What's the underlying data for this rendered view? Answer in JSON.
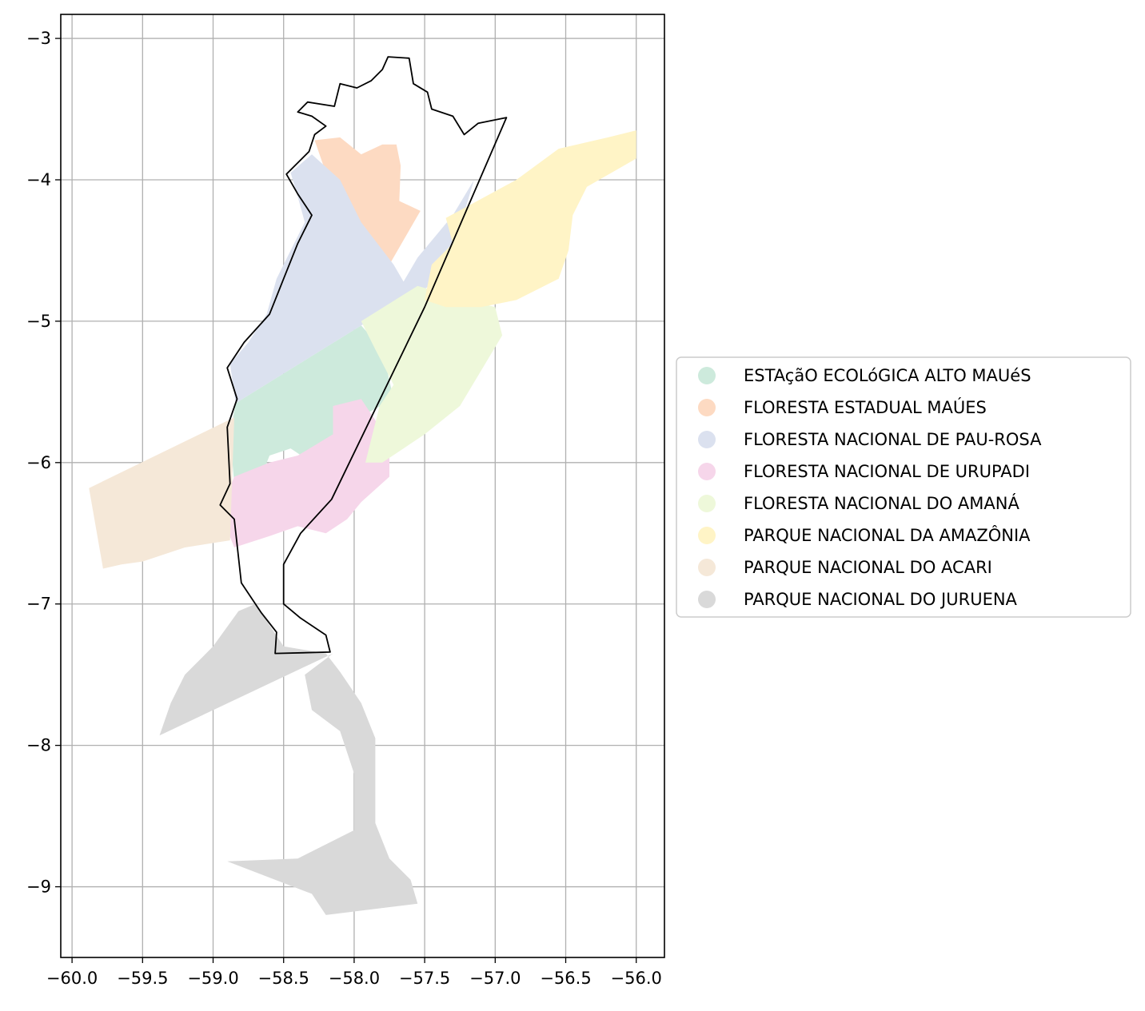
{
  "chart_data": {
    "type": "map",
    "title": "",
    "xlabel": "",
    "ylabel": "",
    "xlim": [
      -60.08,
      -55.8
    ],
    "ylim": [
      -9.5,
      -2.83
    ],
    "grid": true,
    "x_ticks": [
      {
        "value": -60.0,
        "label": "−60.0"
      },
      {
        "value": -59.5,
        "label": "−59.5"
      },
      {
        "value": -59.0,
        "label": "−59.0"
      },
      {
        "value": -58.5,
        "label": "−58.5"
      },
      {
        "value": -58.0,
        "label": "−58.0"
      },
      {
        "value": -57.5,
        "label": "−57.5"
      },
      {
        "value": -57.0,
        "label": "−57.0"
      },
      {
        "value": -56.5,
        "label": "−56.5"
      },
      {
        "value": -56.0,
        "label": "−56.0"
      }
    ],
    "y_ticks": [
      {
        "value": -3,
        "label": "−3"
      },
      {
        "value": -4,
        "label": "−4"
      },
      {
        "value": -5,
        "label": "−5"
      },
      {
        "value": -6,
        "label": "−6"
      },
      {
        "value": -7,
        "label": "−7"
      },
      {
        "value": -8,
        "label": "−8"
      },
      {
        "value": -9,
        "label": "−9"
      }
    ],
    "legend_position": "right",
    "areas": [
      {
        "name": "ESTAçãO ECOLóGICA ALTO MAUéS",
        "color": "#cdeadc",
        "coords": [
          [
            -58.84,
            -5.58
          ],
          [
            -57.95,
            -5.03
          ],
          [
            -57.8,
            -5.2
          ],
          [
            -57.72,
            -5.55
          ],
          [
            -58.0,
            -5.7
          ],
          [
            -58.15,
            -5.85
          ],
          [
            -58.3,
            -6.0
          ],
          [
            -58.45,
            -5.9
          ],
          [
            -58.6,
            -5.95
          ],
          [
            -58.7,
            -6.2
          ],
          [
            -58.85,
            -6.15
          ],
          [
            -58.88,
            -5.8
          ]
        ]
      },
      {
        "name": "FLORESTA ESTADUAL MAÚES",
        "color": "#fddac2",
        "coords": [
          [
            -58.28,
            -3.72
          ],
          [
            -58.1,
            -3.7
          ],
          [
            -57.95,
            -3.82
          ],
          [
            -57.8,
            -3.75
          ],
          [
            -57.7,
            -3.75
          ],
          [
            -57.67,
            -3.9
          ],
          [
            -57.68,
            -4.15
          ],
          [
            -57.53,
            -4.22
          ],
          [
            -57.75,
            -4.6
          ],
          [
            -57.95,
            -4.35
          ],
          [
            -58.1,
            -4.1
          ],
          [
            -58.2,
            -3.95
          ]
        ]
      },
      {
        "name": "FLORESTA NACIONAL DE PAU-ROSA",
        "color": "#dbe1ef",
        "coords": [
          [
            -58.45,
            -3.95
          ],
          [
            -58.3,
            -3.82
          ],
          [
            -58.1,
            -4.0
          ],
          [
            -57.95,
            -4.3
          ],
          [
            -57.72,
            -4.6
          ],
          [
            -57.65,
            -4.72
          ],
          [
            -57.55,
            -4.55
          ],
          [
            -57.3,
            -4.25
          ],
          [
            -57.15,
            -4.0
          ],
          [
            -57.3,
            -4.5
          ],
          [
            -57.48,
            -4.76
          ],
          [
            -57.95,
            -5.03
          ],
          [
            -58.84,
            -5.58
          ],
          [
            -58.88,
            -5.3
          ],
          [
            -58.75,
            -5.15
          ],
          [
            -58.62,
            -4.95
          ],
          [
            -58.55,
            -4.7
          ],
          [
            -58.45,
            -4.5
          ],
          [
            -58.35,
            -4.3
          ],
          [
            -58.4,
            -4.12
          ]
        ]
      },
      {
        "name": "FLORESTA NACIONAL DE URUPADI",
        "color": "#f6d6ea",
        "coords": [
          [
            -58.15,
            -5.6
          ],
          [
            -57.95,
            -5.55
          ],
          [
            -57.85,
            -5.7
          ],
          [
            -57.75,
            -5.9
          ],
          [
            -57.75,
            -6.1
          ],
          [
            -57.95,
            -6.28
          ],
          [
            -58.05,
            -6.4
          ],
          [
            -58.2,
            -6.5
          ],
          [
            -58.4,
            -6.45
          ],
          [
            -58.6,
            -6.52
          ],
          [
            -58.85,
            -6.6
          ],
          [
            -58.95,
            -6.35
          ],
          [
            -58.85,
            -6.1
          ],
          [
            -58.6,
            -6.0
          ],
          [
            -58.4,
            -5.95
          ],
          [
            -58.15,
            -5.8
          ]
        ]
      },
      {
        "name": "FLORESTA NACIONAL DO AMANÁ",
        "color": "#eef8da",
        "coords": [
          [
            -57.95,
            -5.0
          ],
          [
            -57.55,
            -4.75
          ],
          [
            -57.2,
            -4.85
          ],
          [
            -57.0,
            -4.9
          ],
          [
            -56.95,
            -5.1
          ],
          [
            -57.25,
            -5.6
          ],
          [
            -57.5,
            -5.8
          ],
          [
            -57.8,
            -6.0
          ],
          [
            -57.92,
            -6.0
          ],
          [
            -57.82,
            -5.6
          ],
          [
            -57.72,
            -5.45
          ],
          [
            -57.85,
            -5.2
          ]
        ]
      },
      {
        "name": "PARQUE NACIONAL DA AMAZÔNIA",
        "color": "#fff4c6",
        "coords": [
          [
            -57.35,
            -4.27
          ],
          [
            -56.85,
            -4.0
          ],
          [
            -56.55,
            -3.78
          ],
          [
            -56.2,
            -3.7
          ],
          [
            -56.0,
            -3.65
          ],
          [
            -56.0,
            -3.85
          ],
          [
            -56.35,
            -4.05
          ],
          [
            -56.45,
            -4.25
          ],
          [
            -56.48,
            -4.5
          ],
          [
            -56.55,
            -4.7
          ],
          [
            -56.85,
            -4.85
          ],
          [
            -57.1,
            -4.9
          ],
          [
            -57.35,
            -4.9
          ],
          [
            -57.5,
            -4.85
          ],
          [
            -57.45,
            -4.6
          ],
          [
            -57.3,
            -4.45
          ]
        ]
      },
      {
        "name": "PARQUE NACIONAL DO ACARI",
        "color": "#f5e8d8",
        "coords": [
          [
            -59.88,
            -6.18
          ],
          [
            -58.85,
            -5.68
          ],
          [
            -58.88,
            -6.55
          ],
          [
            -59.2,
            -6.6
          ],
          [
            -59.5,
            -6.7
          ],
          [
            -59.65,
            -6.72
          ],
          [
            -59.78,
            -6.75
          ]
        ]
      },
      {
        "name": "PARQUE NACIONAL DO JURUENA",
        "color": "#d9d9d9",
        "coords": [
          [
            -59.38,
            -7.93
          ],
          [
            -58.15,
            -7.35
          ],
          [
            -58.35,
            -7.5
          ],
          [
            -58.3,
            -7.75
          ],
          [
            -58.1,
            -7.9
          ],
          [
            -58.0,
            -8.2
          ],
          [
            -58.0,
            -8.6
          ],
          [
            -58.4,
            -8.8
          ],
          [
            -58.9,
            -8.82
          ],
          [
            -58.3,
            -9.05
          ],
          [
            -58.2,
            -9.2
          ],
          [
            -57.8,
            -9.15
          ],
          [
            -57.55,
            -9.12
          ],
          [
            -57.6,
            -8.95
          ],
          [
            -57.75,
            -8.8
          ],
          [
            -57.85,
            -8.55
          ],
          [
            -57.85,
            -8.25
          ],
          [
            -57.85,
            -7.95
          ],
          [
            -57.95,
            -7.7
          ],
          [
            -58.1,
            -7.48
          ],
          [
            -58.2,
            -7.35
          ],
          [
            -58.5,
            -7.3
          ],
          [
            -58.7,
            -7.0
          ],
          [
            -58.82,
            -7.05
          ],
          [
            -59.0,
            -7.3
          ],
          [
            -59.2,
            -7.5
          ],
          [
            -59.3,
            -7.7
          ]
        ]
      }
    ],
    "boundary_coords": [
      [
        -57.76,
        -3.13
      ],
      [
        -57.61,
        -3.14
      ],
      [
        -57.58,
        -3.32
      ],
      [
        -57.48,
        -3.38
      ],
      [
        -57.45,
        -3.5
      ],
      [
        -57.3,
        -3.55
      ],
      [
        -57.22,
        -3.68
      ],
      [
        -57.12,
        -3.6
      ],
      [
        -56.92,
        -3.56
      ],
      [
        -57.5,
        -4.9
      ],
      [
        -58.16,
        -6.26
      ],
      [
        -58.38,
        -6.5
      ],
      [
        -58.5,
        -6.72
      ],
      [
        -58.5,
        -7.0
      ],
      [
        -58.38,
        -7.1
      ],
      [
        -58.2,
        -7.22
      ],
      [
        -58.17,
        -7.34
      ],
      [
        -58.56,
        -7.35
      ],
      [
        -58.55,
        -7.2
      ],
      [
        -58.66,
        -7.06
      ],
      [
        -58.8,
        -6.85
      ],
      [
        -58.85,
        -6.4
      ],
      [
        -58.95,
        -6.3
      ],
      [
        -58.88,
        -6.15
      ],
      [
        -58.9,
        -5.75
      ],
      [
        -58.83,
        -5.55
      ],
      [
        -58.9,
        -5.33
      ],
      [
        -58.78,
        -5.15
      ],
      [
        -58.6,
        -4.95
      ],
      [
        -58.5,
        -4.7
      ],
      [
        -58.4,
        -4.45
      ],
      [
        -58.3,
        -4.25
      ],
      [
        -58.4,
        -4.1
      ],
      [
        -58.48,
        -3.96
      ],
      [
        -58.32,
        -3.8
      ],
      [
        -58.28,
        -3.68
      ],
      [
        -58.2,
        -3.62
      ],
      [
        -58.3,
        -3.55
      ],
      [
        -58.4,
        -3.52
      ],
      [
        -58.33,
        -3.45
      ],
      [
        -58.14,
        -3.48
      ],
      [
        -58.1,
        -3.32
      ],
      [
        -57.98,
        -3.35
      ],
      [
        -57.88,
        -3.3
      ],
      [
        -57.8,
        -3.22
      ]
    ],
    "boundary_color": "#000000"
  }
}
